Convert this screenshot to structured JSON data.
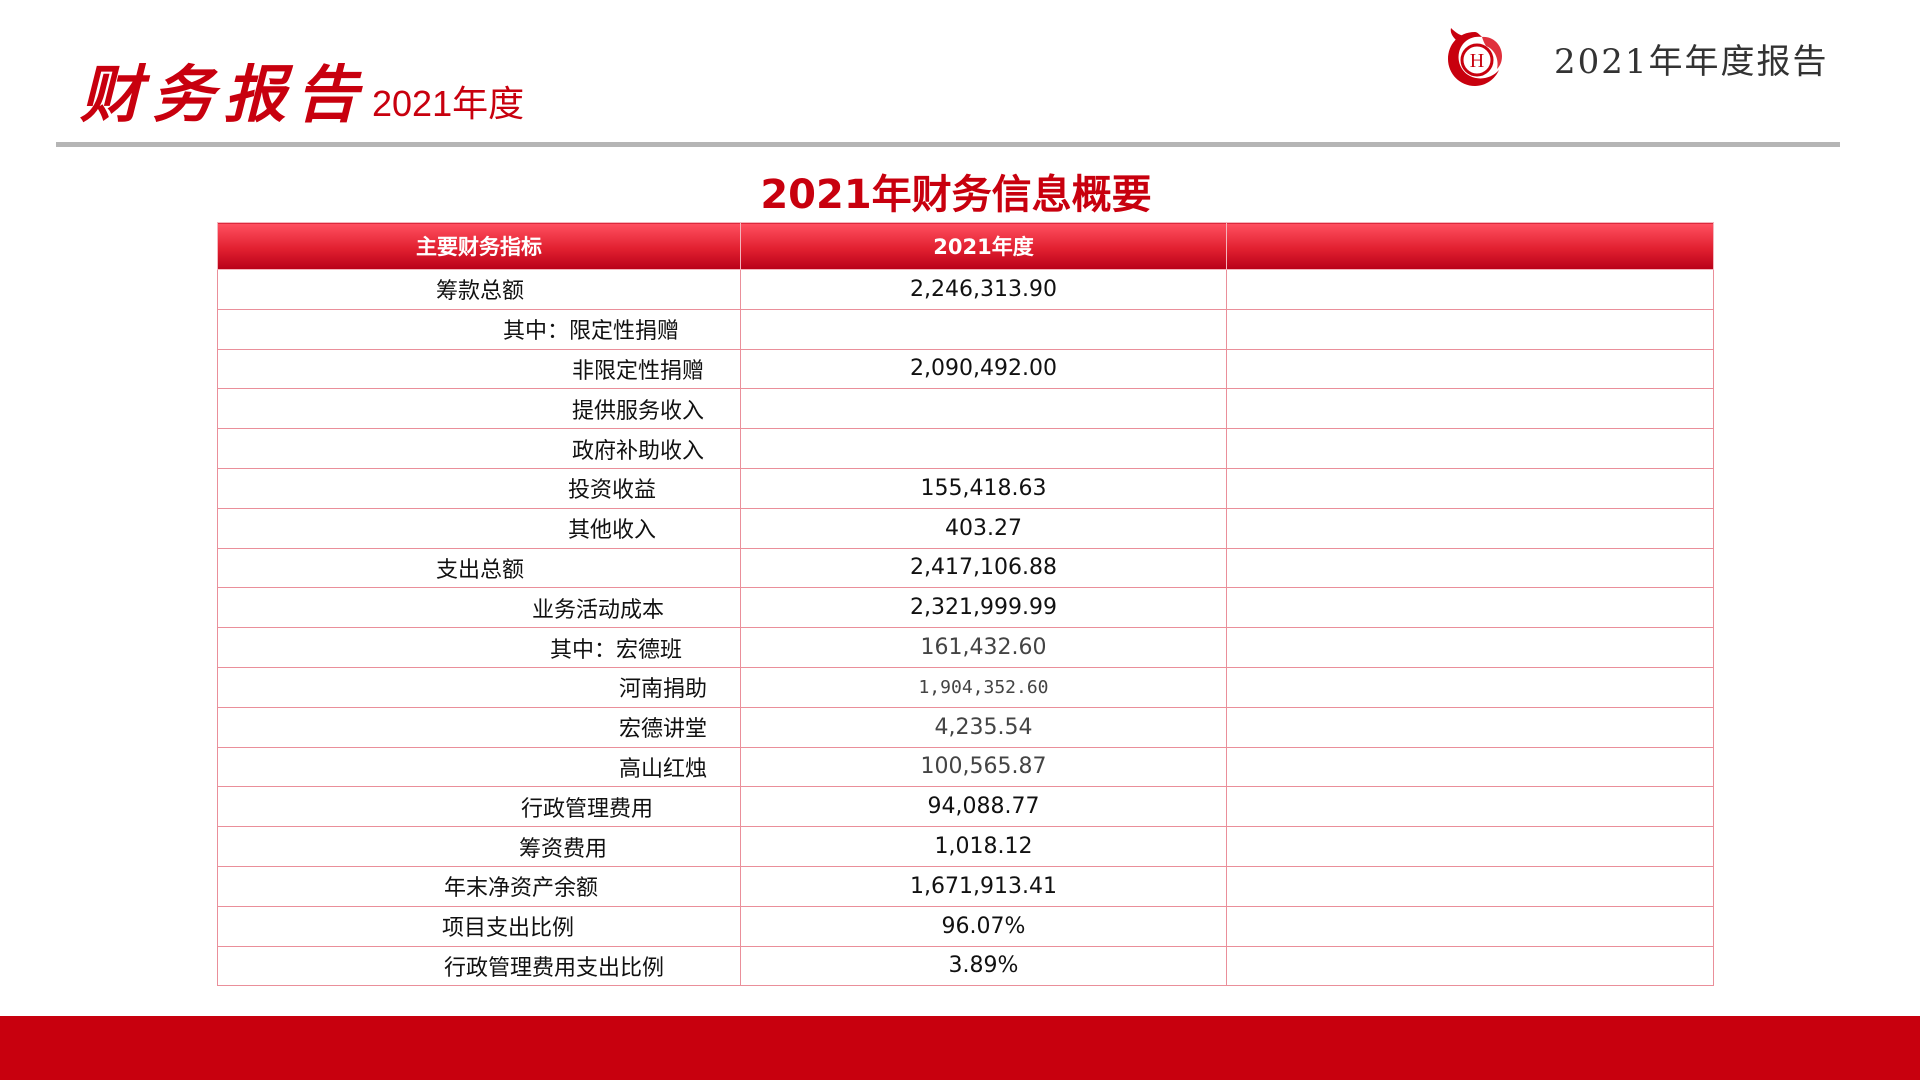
{
  "header": {
    "title_main": "财务报告",
    "title_year": "2021年度",
    "report_label": "2021年年度报告",
    "logo_letter": "H",
    "logo_icon": "phoenix-logo-icon"
  },
  "table": {
    "title": "2021年财务信息概要",
    "columns": [
      "主要财务指标",
      "2021年度",
      ""
    ],
    "rows": [
      {
        "label": "筹款总额",
        "value": "2,246,313.90"
      },
      {
        "label": "其中：限定性捐赠",
        "value": ""
      },
      {
        "label": "非限定性捐赠",
        "value": "2,090,492.00"
      },
      {
        "label": "提供服务收入",
        "value": ""
      },
      {
        "label": "政府补助收入",
        "value": ""
      },
      {
        "label": "投资收益",
        "value": "155,418.63"
      },
      {
        "label": "其他收入",
        "value": "403.27"
      },
      {
        "label": "支出总额",
        "value": "2,417,106.88"
      },
      {
        "label": "业务活动成本",
        "value": "2,321,999.99"
      },
      {
        "label": "其中：宏德班",
        "value": "161,432.60"
      },
      {
        "label": "河南捐助",
        "value": "1,904,352.60"
      },
      {
        "label": "宏德讲堂",
        "value": "4,235.54"
      },
      {
        "label": "高山红烛",
        "value": "100,565.87"
      },
      {
        "label": "行政管理费用",
        "value": "94,088.77"
      },
      {
        "label": "筹资费用",
        "value": "1,018.12"
      },
      {
        "label": "年末净资产余额",
        "value": "1,671,913.41"
      },
      {
        "label": "项目支出比例",
        "value": "96.07%"
      },
      {
        "label": "行政管理费用支出比例",
        "value": "3.89%"
      }
    ]
  },
  "colors": {
    "brand_red": "#c8000e",
    "header_gradient_top": "#ff5060",
    "header_gradient_bottom": "#b80018",
    "grid_line": "#ea8f9a",
    "divider": "#b5b5b5"
  }
}
